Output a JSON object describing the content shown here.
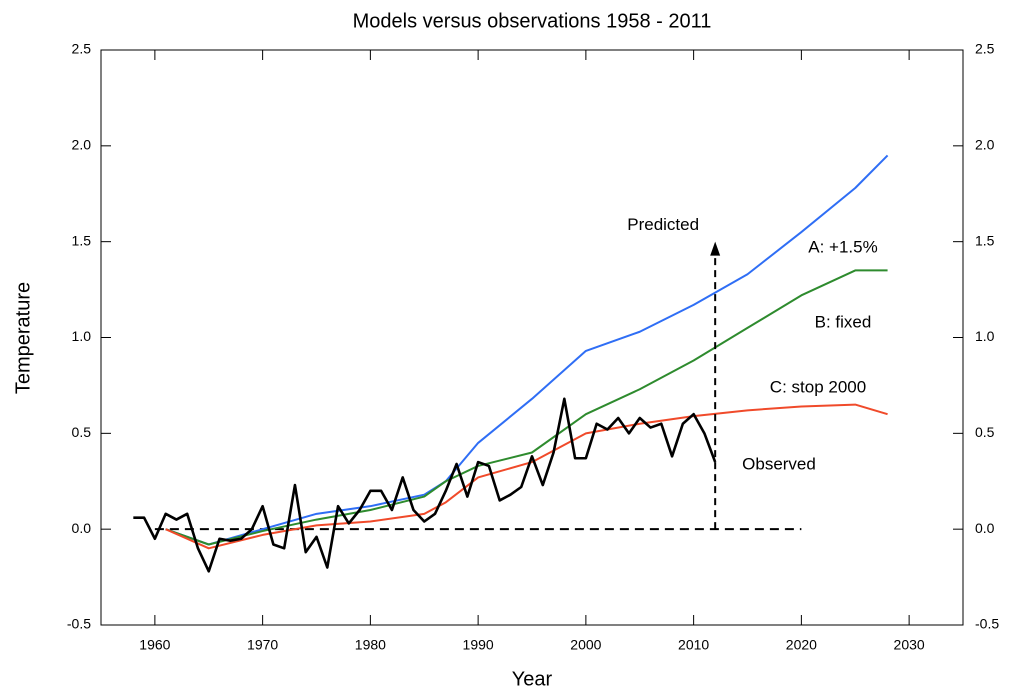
{
  "chart_data": {
    "type": "line",
    "title": "Models versus observations 1958 - 2011",
    "xlabel": "Year",
    "ylabel": "Temperature",
    "xlim": [
      1955,
      2035
    ],
    "ylim": [
      -0.5,
      2.5
    ],
    "xticks": [
      1960,
      1970,
      1980,
      1990,
      2000,
      2010,
      2020,
      2030
    ],
    "yticks": [
      -0.5,
      {
        "value": 0,
        "label": "0.0"
      },
      0.5,
      {
        "value": 1,
        "label": "1.0"
      },
      1.5,
      {
        "value": 2,
        "label": "2.0"
      },
      2.5
    ],
    "series": [
      {
        "name": "A: +1.5%",
        "color": "#2f6ef5",
        "x": [
          1961,
          1965,
          1970,
          1975,
          1980,
          1985,
          1987,
          1990,
          1995,
          2000,
          2005,
          2010,
          2015,
          2020,
          2025,
          2028
        ],
        "values": [
          0,
          -0.08,
          0.0,
          0.08,
          0.12,
          0.18,
          0.25,
          0.45,
          0.68,
          0.93,
          1.03,
          1.17,
          1.33,
          1.55,
          1.78,
          1.95
        ]
      },
      {
        "name": "B: fixed",
        "color": "#2e8b2e",
        "x": [
          1961,
          1965,
          1970,
          1975,
          1980,
          1985,
          1987,
          1990,
          1995,
          2000,
          2005,
          2010,
          2015,
          2020,
          2025,
          2028
        ],
        "values": [
          0,
          -0.08,
          -0.01,
          0.05,
          0.1,
          0.17,
          0.25,
          0.33,
          0.4,
          0.6,
          0.73,
          0.88,
          1.05,
          1.22,
          1.35,
          1.35
        ]
      },
      {
        "name": "C: stop 2000",
        "color": "#f04a2a",
        "x": [
          1961,
          1965,
          1970,
          1975,
          1980,
          1985,
          1987,
          1990,
          1995,
          2000,
          2005,
          2010,
          2015,
          2020,
          2025,
          2028
        ],
        "values": [
          0,
          -0.1,
          -0.03,
          0.02,
          0.04,
          0.08,
          0.14,
          0.27,
          0.35,
          0.5,
          0.55,
          0.59,
          0.62,
          0.64,
          0.65,
          0.6
        ]
      },
      {
        "name": "Observed",
        "color": "#000000",
        "x": [
          1958,
          1959,
          1960,
          1961,
          1962,
          1963,
          1964,
          1965,
          1966,
          1967,
          1968,
          1969,
          1970,
          1971,
          1972,
          1973,
          1974,
          1975,
          1976,
          1977,
          1978,
          1979,
          1980,
          1981,
          1982,
          1983,
          1984,
          1985,
          1986,
          1987,
          1988,
          1989,
          1990,
          1991,
          1992,
          1993,
          1994,
          1995,
          1996,
          1997,
          1998,
          1999,
          2000,
          2001,
          2002,
          2003,
          2004,
          2005,
          2006,
          2007,
          2008,
          2009,
          2010,
          2011,
          2012
        ],
        "values": [
          0.06,
          0.06,
          -0.05,
          0.08,
          0.05,
          0.08,
          -0.1,
          -0.22,
          -0.05,
          -0.06,
          -0.05,
          0.0,
          0.12,
          -0.08,
          -0.1,
          0.23,
          -0.12,
          -0.04,
          -0.2,
          0.12,
          0.03,
          0.1,
          0.2,
          0.2,
          0.1,
          0.27,
          0.1,
          0.04,
          0.08,
          0.2,
          0.34,
          0.17,
          0.35,
          0.33,
          0.15,
          0.18,
          0.22,
          0.38,
          0.23,
          0.4,
          0.68,
          0.37,
          0.37,
          0.55,
          0.52,
          0.58,
          0.5,
          0.58,
          0.53,
          0.55,
          0.38,
          0.55,
          0.6,
          0.5,
          0.35
        ]
      }
    ],
    "baseline": {
      "x": [
        1960,
        2020
      ],
      "values": [
        0,
        0
      ]
    },
    "arrow": {
      "x": 2012,
      "from": 0,
      "to": 1.5,
      "label": "Predicted"
    }
  }
}
